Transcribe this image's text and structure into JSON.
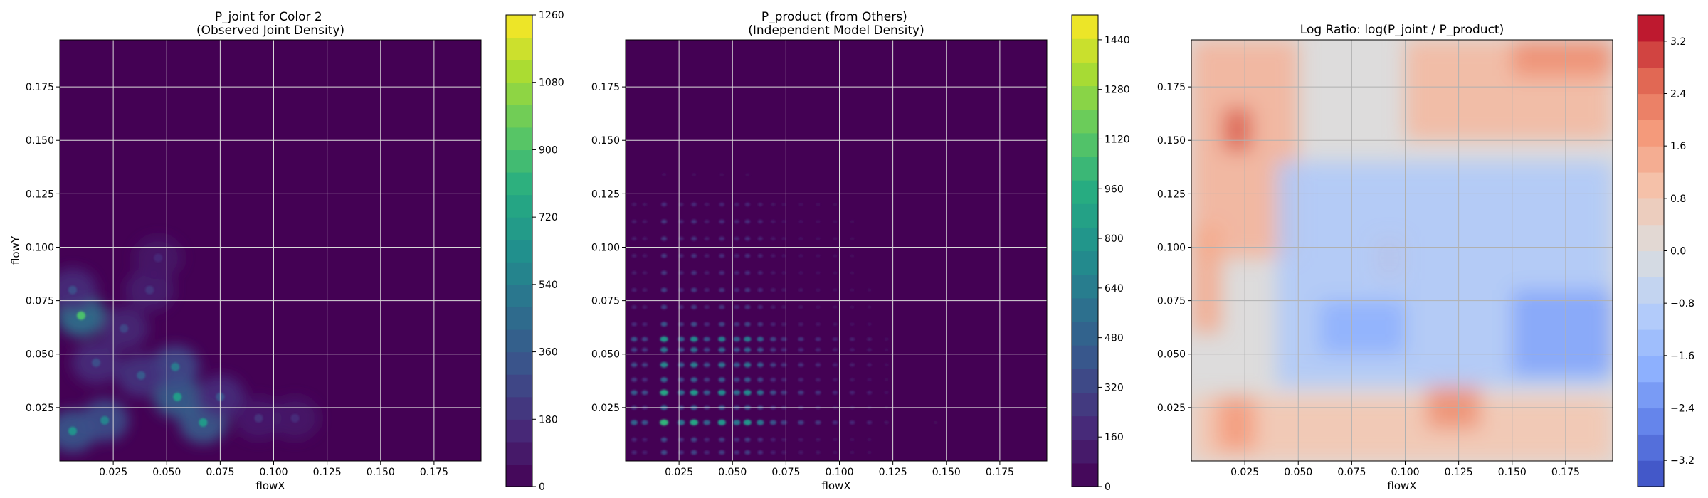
{
  "chart_data": [
    {
      "type": "heatmap",
      "title": "P_joint for Color 2\n(Observed Joint Density)",
      "xlabel": "flowX",
      "ylabel": "flowY",
      "xlim": [
        0.0,
        0.197
      ],
      "ylim": [
        0.0,
        0.197
      ],
      "x_ticks": [
        0.025,
        0.05,
        0.075,
        0.1,
        0.125,
        0.15,
        0.175
      ],
      "x_tick_labels": [
        "0.025",
        "0.050",
        "0.075",
        "0.100",
        "0.125",
        "0.150",
        "0.175"
      ],
      "y_ticks": [
        0.025,
        0.05,
        0.075,
        0.1,
        0.125,
        0.15,
        0.175
      ],
      "y_tick_labels": [
        "0.025",
        "0.050",
        "0.075",
        "0.100",
        "0.125",
        "0.150",
        "0.175"
      ],
      "grid": true,
      "colormap": "viridis",
      "colorbar": {
        "range": [
          0,
          1260
        ],
        "ticks": [
          0,
          180,
          360,
          540,
          720,
          900,
          1080,
          1260
        ],
        "tick_labels": [
          "0",
          "180",
          "360",
          "540",
          "720",
          "900",
          "1080",
          "1260"
        ],
        "levels": 21
      },
      "hotspots": [
        {
          "x": 0.01,
          "y": 0.068,
          "value": 900
        },
        {
          "x": 0.006,
          "y": 0.014,
          "value": 640
        },
        {
          "x": 0.021,
          "y": 0.019,
          "value": 560
        },
        {
          "x": 0.055,
          "y": 0.03,
          "value": 700
        },
        {
          "x": 0.067,
          "y": 0.018,
          "value": 680
        },
        {
          "x": 0.054,
          "y": 0.044,
          "value": 520
        },
        {
          "x": 0.038,
          "y": 0.04,
          "value": 360
        },
        {
          "x": 0.017,
          "y": 0.046,
          "value": 300
        },
        {
          "x": 0.03,
          "y": 0.062,
          "value": 260
        },
        {
          "x": 0.075,
          "y": 0.03,
          "value": 320
        },
        {
          "x": 0.042,
          "y": 0.08,
          "value": 200
        },
        {
          "x": 0.006,
          "y": 0.08,
          "value": 300
        },
        {
          "x": 0.11,
          "y": 0.02,
          "value": 160
        },
        {
          "x": 0.046,
          "y": 0.095,
          "value": 150
        },
        {
          "x": 0.093,
          "y": 0.02,
          "value": 180
        }
      ]
    },
    {
      "type": "heatmap",
      "title": "P_product (from Others)\n(Independent Model Density)",
      "xlabel": "flowX",
      "ylabel": "",
      "xlim": [
        0.0,
        0.197
      ],
      "ylim": [
        0.0,
        0.197
      ],
      "x_ticks": [
        0.025,
        0.05,
        0.075,
        0.1,
        0.125,
        0.15,
        0.175
      ],
      "x_tick_labels": [
        "0.025",
        "0.050",
        "0.075",
        "0.100",
        "0.125",
        "0.150",
        "0.175"
      ],
      "y_ticks": [
        0.025,
        0.05,
        0.075,
        0.1,
        0.125,
        0.15,
        0.175
      ],
      "y_tick_labels": [
        "0.025",
        "0.050",
        "0.075",
        "0.100",
        "0.125",
        "0.150",
        "0.175"
      ],
      "grid": true,
      "colormap": "viridis",
      "colorbar": {
        "range": [
          0,
          1520
        ],
        "ticks": [
          0,
          160,
          320,
          480,
          640,
          800,
          960,
          1120,
          1280,
          1440
        ],
        "tick_labels": [
          "0",
          "160",
          "320",
          "480",
          "640",
          "800",
          "960",
          "1120",
          "1280",
          "1440"
        ],
        "levels": 20
      },
      "x_marginal_peaks": [
        {
          "x": 0.004,
          "w": 0.5
        },
        {
          "x": 0.009,
          "w": 0.4
        },
        {
          "x": 0.018,
          "w": 1.0
        },
        {
          "x": 0.026,
          "w": 0.6
        },
        {
          "x": 0.032,
          "w": 0.9
        },
        {
          "x": 0.038,
          "w": 0.5
        },
        {
          "x": 0.045,
          "w": 0.8
        },
        {
          "x": 0.052,
          "w": 0.6
        },
        {
          "x": 0.057,
          "w": 0.8
        },
        {
          "x": 0.063,
          "w": 0.6
        },
        {
          "x": 0.069,
          "w": 0.4
        },
        {
          "x": 0.074,
          "w": 0.3
        },
        {
          "x": 0.082,
          "w": 0.3
        },
        {
          "x": 0.09,
          "w": 0.25
        },
        {
          "x": 0.098,
          "w": 0.2
        },
        {
          "x": 0.106,
          "w": 0.18
        },
        {
          "x": 0.114,
          "w": 0.15
        },
        {
          "x": 0.122,
          "w": 0.08
        },
        {
          "x": 0.145,
          "w": 0.04
        }
      ],
      "y_marginal_peaks": [
        {
          "y": 0.004,
          "w": 0.35
        },
        {
          "y": 0.01,
          "w": 0.35
        },
        {
          "y": 0.018,
          "w": 1.0
        },
        {
          "y": 0.025,
          "w": 0.5
        },
        {
          "y": 0.032,
          "w": 0.9
        },
        {
          "y": 0.038,
          "w": 0.5
        },
        {
          "y": 0.045,
          "w": 0.7
        },
        {
          "y": 0.052,
          "w": 0.6
        },
        {
          "y": 0.057,
          "w": 0.8
        },
        {
          "y": 0.064,
          "w": 0.4
        },
        {
          "y": 0.072,
          "w": 0.3
        },
        {
          "y": 0.08,
          "w": 0.3
        },
        {
          "y": 0.088,
          "w": 0.25
        },
        {
          "y": 0.096,
          "w": 0.25
        },
        {
          "y": 0.104,
          "w": 0.25
        },
        {
          "y": 0.112,
          "w": 0.25
        },
        {
          "y": 0.12,
          "w": 0.2
        },
        {
          "y": 0.134,
          "w": 0.06
        },
        {
          "y": 0.145,
          "w": 0.03
        }
      ],
      "peak_value": 1000
    },
    {
      "type": "heatmap",
      "title": "Log Ratio: log(P_joint / P_product)",
      "xlabel": "flowX",
      "ylabel": "",
      "xlim": [
        0.0,
        0.197
      ],
      "ylim": [
        0.0,
        0.197
      ],
      "x_ticks": [
        0.025,
        0.05,
        0.075,
        0.1,
        0.125,
        0.15,
        0.175
      ],
      "x_tick_labels": [
        "0.025",
        "0.050",
        "0.075",
        "0.100",
        "0.125",
        "0.150",
        "0.175"
      ],
      "y_ticks": [
        0.025,
        0.05,
        0.075,
        0.1,
        0.125,
        0.15,
        0.175
      ],
      "y_tick_labels": [
        "0.025",
        "0.050",
        "0.075",
        "0.100",
        "0.125",
        "0.150",
        "0.175"
      ],
      "grid": true,
      "colormap": "coolwarm",
      "colorbar": {
        "range": [
          -3.6,
          3.6
        ],
        "ticks": [
          -3.2,
          -2.4,
          -1.6,
          -0.8,
          0.0,
          0.8,
          1.6,
          2.4,
          3.2
        ],
        "tick_labels": [
          "−3.2",
          "−2.4",
          "−1.6",
          "−0.8",
          "0.0",
          "0.8",
          "1.6",
          "2.4",
          "3.2"
        ],
        "levels": 18
      },
      "regions": [
        {
          "x0": 0.0,
          "x1": 0.05,
          "y0": 0.095,
          "y1": 0.197,
          "value": 1.3
        },
        {
          "x0": 0.015,
          "x1": 0.028,
          "y0": 0.145,
          "y1": 0.165,
          "value": 2.8
        },
        {
          "x0": 0.1,
          "x1": 0.197,
          "y0": 0.15,
          "y1": 0.197,
          "value": 1.2
        },
        {
          "x0": 0.15,
          "x1": 0.197,
          "y0": 0.18,
          "y1": 0.197,
          "value": 2.0
        },
        {
          "x0": 0.0,
          "x1": 0.014,
          "y0": 0.06,
          "y1": 0.11,
          "value": 1.5
        },
        {
          "x0": 0.0,
          "x1": 0.197,
          "y0": 0.0,
          "y1": 0.03,
          "value": 0.9
        },
        {
          "x0": 0.11,
          "x1": 0.135,
          "y0": 0.015,
          "y1": 0.035,
          "value": 2.0
        },
        {
          "x0": 0.012,
          "x1": 0.03,
          "y0": 0.005,
          "y1": 0.03,
          "value": 1.8
        },
        {
          "x0": 0.085,
          "x1": 0.1,
          "y0": 0.085,
          "y1": 0.105,
          "value": 1.3
        },
        {
          "x0": 0.04,
          "x1": 0.197,
          "y0": 0.035,
          "y1": 0.14,
          "value": -1.1
        },
        {
          "x0": 0.15,
          "x1": 0.197,
          "y0": 0.04,
          "y1": 0.08,
          "value": -2.0
        },
        {
          "x0": 0.06,
          "x1": 0.1,
          "y0": 0.05,
          "y1": 0.075,
          "value": -1.8
        }
      ]
    }
  ]
}
